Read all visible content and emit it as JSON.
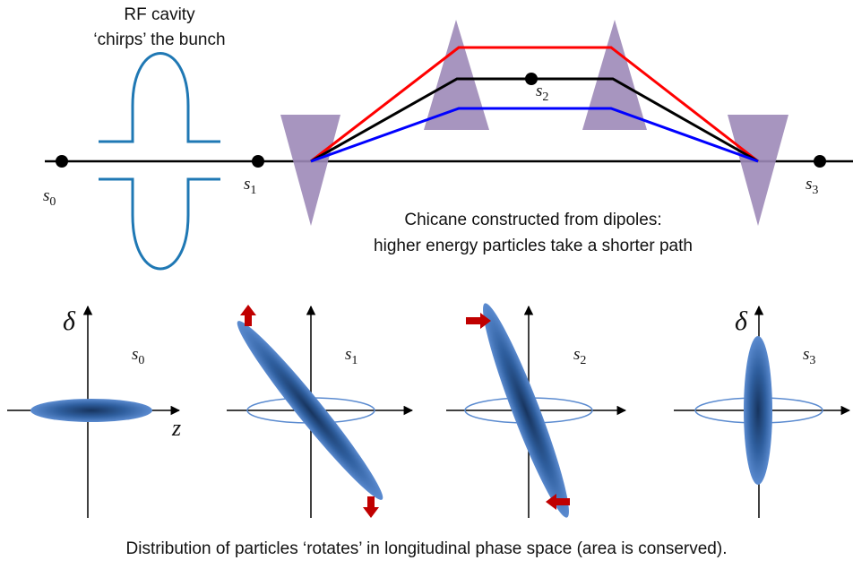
{
  "rf_cavity": {
    "line1": "RF cavity",
    "line2": "‘chirps’ the bunch"
  },
  "chicane": {
    "line1": "Chicane constructed from dipoles:",
    "line2": "higher energy particles take a shorter path"
  },
  "points": [
    {
      "base": "s",
      "sub": "0"
    },
    {
      "base": "s",
      "sub": "1"
    },
    {
      "base": "s",
      "sub": "2"
    },
    {
      "base": "s",
      "sub": "3"
    }
  ],
  "phase_space": {
    "y_axis_label": "δ",
    "x_axis_label": "z",
    "panels": [
      {
        "base": "s",
        "sub": "0"
      },
      {
        "base": "s",
        "sub": "1"
      },
      {
        "base": "s",
        "sub": "2"
      },
      {
        "base": "s",
        "sub": "3"
      }
    ]
  },
  "caption": "Distribution of particles ‘rotates’ in longitudinal phase space (area is conserved).",
  "colors": {
    "beamline": "#000000",
    "cavity": "#1f78b4",
    "dipole": "#9d8ab8",
    "high_energy_path": "#ff0000",
    "nominal_path": "#000000",
    "low_energy_path": "#0000ff",
    "arrow": "#c00000",
    "bunch": "#2e5d9c"
  }
}
